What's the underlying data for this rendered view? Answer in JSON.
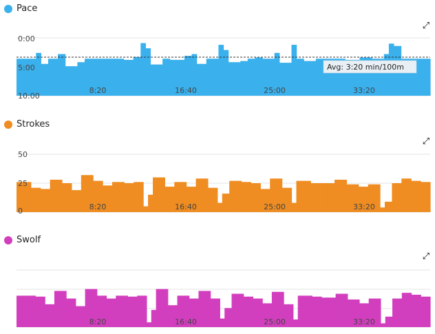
{
  "colors": {
    "pace": "#3ab0ec",
    "strokes": "#ef8d22",
    "swolf": "#d23fbe"
  },
  "icons": {
    "expand": "expand-icon"
  },
  "chart_data": [
    {
      "type": "bar",
      "title": "Pace",
      "x_ticks": [
        "8:20",
        "16:40",
        "25:00",
        "33:20"
      ],
      "y_ticks": [
        "0:00",
        "5:00",
        "10:00"
      ],
      "ylim": [
        0,
        10
      ],
      "y_inverted": true,
      "avg_label": "Avg: 3:20 min/100m",
      "avg_value": 3.33,
      "values": [
        3.6,
        3.6,
        3.6,
        3.6,
        3.6,
        3.6,
        3.6,
        3.6,
        2.6,
        2.6,
        4.5,
        4.5,
        4.5,
        3.6,
        3.6,
        3.6,
        3.6,
        2.8,
        2.8,
        2.8,
        4.9,
        4.9,
        4.9,
        4.9,
        4.9,
        4.2,
        4.2,
        4.2,
        3.6,
        3.6,
        3.6,
        3.6,
        3.6,
        3.6,
        3.6,
        3.6,
        3.6,
        3.6,
        3.6,
        3.6,
        3.6,
        3.6,
        3.6,
        3.6,
        3.8,
        3.8,
        3.8,
        3.8,
        3.3,
        3.3,
        3.3,
        0.9,
        0.9,
        1.8,
        1.8,
        4.6,
        4.6,
        4.6,
        4.6,
        4.6,
        3.6,
        3.6,
        3.6,
        3.8,
        3.8,
        3.8,
        3.8,
        3.8,
        3.8,
        3.1,
        3.1,
        3.1,
        2.8,
        2.8,
        4.5,
        4.5,
        4.5,
        4.5,
        3.6,
        3.6,
        3.6,
        3.6,
        3.6,
        1.2,
        1.2,
        2.1,
        2.1,
        4.2,
        4.2,
        4.2,
        4.2,
        4.2,
        4.0,
        4.0,
        4.0,
        3.6,
        3.6,
        3.6,
        3.4,
        3.4,
        3.4,
        3.6,
        3.6,
        3.6,
        3.6,
        3.6,
        2.6,
        2.6,
        4.3,
        4.3,
        4.3,
        4.3,
        4.3,
        1.2,
        1.2,
        3.6,
        3.6,
        3.6,
        4.0,
        4.0,
        4.0,
        4.0,
        4.0,
        3.6,
        3.6,
        3.6,
        3.6,
        3.6,
        3.6,
        3.6,
        3.6,
        3.6,
        3.6,
        3.6,
        3.6,
        3.8,
        3.8,
        3.8,
        3.8,
        3.8,
        3.8,
        3.4,
        3.4,
        3.4,
        3.4,
        3.4,
        3.6,
        3.6,
        3.6,
        3.6,
        3.6,
        2.8,
        2.8,
        1.0,
        1.0,
        1.4,
        1.4,
        1.4,
        3.6,
        3.6,
        3.6,
        3.6,
        3.6,
        3.6,
        3.6,
        3.6,
        3.6,
        3.6,
        3.6,
        3.6
      ]
    },
    {
      "type": "bar",
      "title": "Strokes",
      "x_ticks": [
        "8:20",
        "16:40",
        "25:00",
        "33:20"
      ],
      "y_ticks": [
        "50",
        "25",
        "0"
      ],
      "ylim": [
        0,
        50
      ],
      "values": [
        26,
        26,
        26,
        26,
        26,
        26,
        21,
        21,
        21,
        21,
        20,
        20,
        20,
        20,
        28,
        28,
        28,
        28,
        28,
        25,
        25,
        25,
        25,
        19,
        19,
        19,
        19,
        32,
        32,
        32,
        32,
        32,
        27,
        27,
        27,
        27,
        23,
        23,
        23,
        23,
        26,
        26,
        26,
        26,
        26,
        25,
        25,
        25,
        25,
        26,
        26,
        26,
        26,
        5,
        5,
        15,
        15,
        30,
        30,
        30,
        30,
        30,
        22,
        22,
        22,
        22,
        26,
        26,
        26,
        26,
        26,
        22,
        22,
        22,
        22,
        29,
        29,
        29,
        29,
        29,
        21,
        21,
        21,
        21,
        8,
        8,
        16,
        16,
        16,
        27,
        27,
        27,
        27,
        27,
        26,
        26,
        26,
        26,
        25,
        25,
        25,
        25,
        20,
        20,
        20,
        20,
        29,
        29,
        29,
        29,
        29,
        21,
        21,
        21,
        21,
        8,
        8,
        27,
        27,
        27,
        27,
        27,
        27,
        25,
        25,
        25,
        25,
        25,
        25,
        25,
        25,
        25,
        25,
        28,
        28,
        28,
        28,
        28,
        24,
        24,
        24,
        24,
        24,
        22,
        22,
        22,
        22,
        24,
        24,
        24,
        24,
        24,
        4,
        4,
        9,
        9,
        9,
        25,
        25,
        25,
        25,
        29,
        29,
        29,
        29,
        27,
        27,
        27,
        27,
        26,
        26,
        26,
        26
      ]
    },
    {
      "type": "bar",
      "title": "Swolf",
      "x_ticks": [
        "8:20",
        "16:40",
        "25:00",
        "33:20"
      ],
      "ylim": [
        0,
        60
      ],
      "values": [
        33,
        33,
        33,
        33,
        33,
        33,
        33,
        33,
        32,
        32,
        32,
        32,
        24,
        24,
        24,
        24,
        38,
        38,
        38,
        38,
        38,
        30,
        30,
        30,
        30,
        22,
        22,
        22,
        22,
        40,
        40,
        40,
        40,
        40,
        33,
        33,
        33,
        33,
        30,
        30,
        30,
        30,
        33,
        33,
        33,
        33,
        33,
        32,
        32,
        32,
        32,
        33,
        33,
        33,
        33,
        5,
        5,
        18,
        18,
        40,
        40,
        40,
        40,
        40,
        23,
        23,
        23,
        23,
        33,
        33,
        33,
        33,
        33,
        30,
        30,
        30,
        30,
        38,
        38,
        38,
        38,
        38,
        30,
        30,
        30,
        30,
        9,
        9,
        20,
        20,
        20,
        35,
        35,
        35,
        35,
        35,
        32,
        32,
        32,
        32,
        30,
        30,
        30,
        30,
        25,
        25,
        25,
        25,
        37,
        37,
        37,
        37,
        37,
        24,
        24,
        24,
        24,
        8,
        8,
        33,
        33,
        33,
        33,
        33,
        33,
        32,
        32,
        32,
        32,
        31,
        31,
        31,
        31,
        31,
        31,
        35,
        35,
        35,
        35,
        35,
        29,
        29,
        29,
        29,
        29,
        25,
        25,
        25,
        25,
        30,
        30,
        30,
        30,
        30,
        4,
        4,
        11,
        11,
        11,
        30,
        30,
        30,
        30,
        36,
        36,
        36,
        36,
        34,
        34,
        34,
        34,
        32,
        32,
        32,
        32
      ]
    }
  ]
}
